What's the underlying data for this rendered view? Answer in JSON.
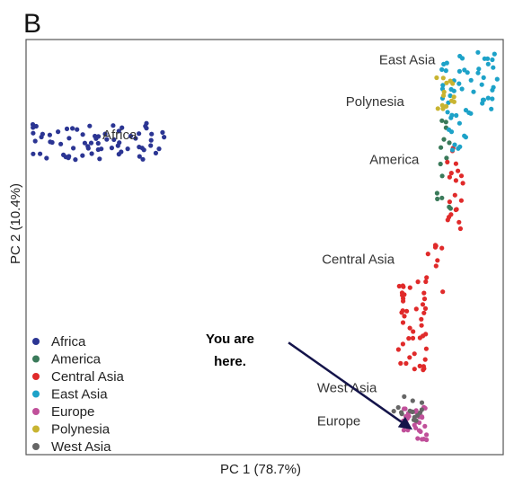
{
  "chart_data": {
    "type": "scatter",
    "panel_label": "B",
    "title": "",
    "xlabel": "PC 1 (78.7%)",
    "ylabel": "PC 2 (10.4%)",
    "xlim": [
      0,
      100
    ],
    "ylim": [
      0,
      100
    ],
    "grid": false,
    "legend_position": "bottom-left",
    "series": [
      {
        "name": "Africa",
        "color": "#2b3593",
        "clusters": [
          {
            "x": [
              1,
              29
            ],
            "y": [
              71,
              80
            ],
            "n": 70
          }
        ]
      },
      {
        "name": "America",
        "color": "#3a7a5a",
        "clusters": [
          {
            "x": [
              86,
              89
            ],
            "y": [
              56,
              84
            ],
            "n": 14
          }
        ]
      },
      {
        "name": "Central Asia",
        "color": "#e02a2a",
        "clusters": [
          {
            "x": [
              88,
              92
            ],
            "y": [
              53,
              74
            ],
            "n": 20
          },
          {
            "x": [
              78,
              84
            ],
            "y": [
              20,
              43
            ],
            "n": 45
          },
          {
            "x": [
              84,
              88
            ],
            "y": [
              38,
              52
            ],
            "n": 8
          }
        ]
      },
      {
        "name": "East Asia",
        "color": "#1da2c8",
        "clusters": [
          {
            "x": [
              87,
              99
            ],
            "y": [
              81,
              97
            ],
            "n": 45
          },
          {
            "x": [
              88,
              93
            ],
            "y": [
              73,
              84
            ],
            "n": 12
          }
        ]
      },
      {
        "name": "Europe",
        "color": "#c0509a",
        "clusters": [
          {
            "x": [
              79,
              84
            ],
            "y": [
              3,
              12
            ],
            "n": 30
          }
        ]
      },
      {
        "name": "Polynesia",
        "color": "#c8b431",
        "clusters": [
          {
            "x": [
              86,
              90
            ],
            "y": [
              83,
              92
            ],
            "n": 14
          }
        ]
      },
      {
        "name": "West Asia",
        "color": "#666666",
        "clusters": [
          {
            "x": [
              77,
              83
            ],
            "y": [
              8,
              14
            ],
            "n": 16
          }
        ]
      }
    ],
    "cluster_labels": [
      {
        "text": "East Asia",
        "x": 74,
        "y": 94
      },
      {
        "text": "Polynesia",
        "x": 67,
        "y": 84
      },
      {
        "text": "America",
        "x": 72,
        "y": 70
      },
      {
        "text": "Africa",
        "x": 16,
        "y": 76
      },
      {
        "text": "Central Asia",
        "x": 62,
        "y": 46
      },
      {
        "text": "West Asia",
        "x": 61,
        "y": 15
      },
      {
        "text": "Europe",
        "x": 61,
        "y": 7
      }
    ],
    "annotation": {
      "lines": [
        "You are",
        "here."
      ],
      "arrow_from": [
        55,
        27
      ],
      "arrow_to": [
        81,
        6
      ]
    }
  },
  "colors": {
    "arrow": "#14144a",
    "frame": "#555555"
  }
}
